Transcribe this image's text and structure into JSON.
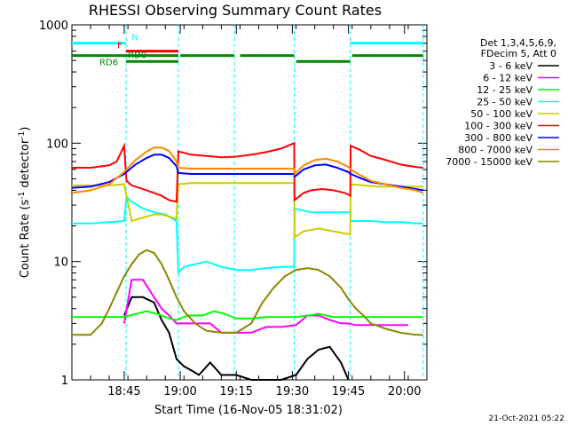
{
  "chart_data": {
    "type": "line",
    "title": "RHESSI Observing Summary Count Rates",
    "ylabel": "Count Rate (s",
    "ylabel_sup1": "-1",
    "ylabel_mid": " detector",
    "ylabel_sup2": "-1",
    "ylabel_end": ")",
    "xlabel": "Start Time (16-Nov-05 18:31:02)",
    "x_unit": "minutes after 18:31:02",
    "xlim": [
      0,
      95
    ],
    "ylim": [
      1,
      1000
    ],
    "yscale": "log",
    "x_tick_labels": [
      "18:45",
      "19:00",
      "19:15",
      "19:30",
      "19:45",
      "20:00"
    ],
    "x_tick_values": [
      14,
      29,
      44,
      59,
      74,
      89
    ],
    "y_tick_labels": [
      "1",
      "10",
      "100",
      "1000"
    ],
    "y_tick_values": [
      1,
      10,
      100,
      1000
    ],
    "legend_header": [
      "Det 1,3,4,5,6,9,",
      "FDecim 5, Att 0"
    ],
    "legend_position": "right",
    "night_boundaries": [
      14.5,
      28.5,
      43.5,
      59.5,
      74.5,
      94
    ],
    "series": [
      {
        "name": "3 - 6 keV",
        "color": "#000000",
        "values": [
          [
            14,
            3.5
          ],
          [
            16,
            5
          ],
          [
            19,
            5
          ],
          [
            22,
            4.5
          ],
          [
            24,
            3.2
          ],
          [
            26,
            2.5
          ],
          [
            28,
            1.5
          ],
          [
            30,
            1.3
          ],
          [
            32,
            1.2
          ],
          [
            34,
            1.1
          ],
          [
            37,
            1.4
          ],
          [
            40,
            1.1
          ],
          [
            44,
            1.1
          ],
          [
            48,
            1.0
          ],
          [
            52,
            1.0
          ],
          [
            56,
            1.0
          ],
          [
            60,
            1.1
          ],
          [
            63,
            1.5
          ],
          [
            66,
            1.8
          ],
          [
            69,
            1.9
          ],
          [
            72,
            1.4
          ],
          [
            74,
            1.0
          ]
        ]
      },
      {
        "name": "6 - 12 keV",
        "color": "#ff00ff",
        "values": [
          [
            14,
            3
          ],
          [
            16,
            7
          ],
          [
            19,
            7
          ],
          [
            22,
            5
          ],
          [
            24,
            4
          ],
          [
            26,
            3.5
          ],
          [
            28,
            3
          ],
          [
            30,
            3
          ],
          [
            33,
            3
          ],
          [
            35,
            3
          ],
          [
            37,
            3
          ],
          [
            40,
            2.5
          ],
          [
            44,
            2.5
          ],
          [
            48,
            2.5
          ],
          [
            52,
            2.8
          ],
          [
            56,
            2.8
          ],
          [
            60,
            2.9
          ],
          [
            63,
            3.5
          ],
          [
            66,
            3.5
          ],
          [
            69,
            3.2
          ],
          [
            72,
            3
          ],
          [
            74,
            3.0
          ],
          [
            76,
            2.9
          ],
          [
            80,
            2.9
          ],
          [
            86,
            2.9
          ],
          [
            90,
            2.9
          ]
        ]
      },
      {
        "name": "12 - 25 keV",
        "color": "#00ff00",
        "values": [
          [
            0,
            3.4
          ],
          [
            5,
            3.4
          ],
          [
            10,
            3.4
          ],
          [
            14,
            3.4
          ],
          [
            17,
            3.6
          ],
          [
            20,
            3.8
          ],
          [
            23,
            3.6
          ],
          [
            26,
            3.3
          ],
          [
            28,
            3.2
          ],
          [
            31,
            3.5
          ],
          [
            35,
            3.5
          ],
          [
            38,
            3.8
          ],
          [
            41,
            3.6
          ],
          [
            44,
            3.3
          ],
          [
            48,
            3.3
          ],
          [
            52,
            3.4
          ],
          [
            56,
            3.4
          ],
          [
            60,
            3.4
          ],
          [
            63,
            3.5
          ],
          [
            66,
            3.6
          ],
          [
            70,
            3.4
          ],
          [
            74,
            3.4
          ],
          [
            78,
            3.4
          ],
          [
            82,
            3.4
          ],
          [
            86,
            3.4
          ],
          [
            90,
            3.4
          ],
          [
            94,
            3.4
          ]
        ]
      },
      {
        "name": "25 - 50 keV",
        "color": "#00ffff",
        "values": [
          [
            0,
            21
          ],
          [
            5,
            21
          ],
          [
            10,
            21.5
          ],
          [
            14,
            22
          ],
          [
            14.6,
            35
          ],
          [
            16,
            32
          ],
          [
            19,
            28
          ],
          [
            22,
            26
          ],
          [
            25,
            25
          ],
          [
            28,
            22
          ],
          [
            28.5,
            8
          ],
          [
            30,
            9
          ],
          [
            33,
            9.5
          ],
          [
            36,
            10
          ],
          [
            40,
            9
          ],
          [
            44,
            8.5
          ],
          [
            48,
            8.5
          ],
          [
            52,
            8.8
          ],
          [
            56,
            9
          ],
          [
            59.5,
            9
          ],
          [
            59.6,
            28
          ],
          [
            62,
            27
          ],
          [
            64,
            26
          ],
          [
            67,
            26
          ],
          [
            70,
            26
          ],
          [
            73,
            26
          ],
          [
            74.5,
            26
          ],
          [
            74.6,
            22
          ],
          [
            77,
            22
          ],
          [
            80,
            22
          ],
          [
            84,
            21.5
          ],
          [
            88,
            21.5
          ],
          [
            92,
            21
          ],
          [
            94,
            21
          ]
        ]
      },
      {
        "name": "50 - 100 keV",
        "color": "#cccc00",
        "values": [
          [
            0,
            44
          ],
          [
            5,
            44
          ],
          [
            10,
            44
          ],
          [
            14,
            45
          ],
          [
            16,
            22
          ],
          [
            18,
            23
          ],
          [
            20,
            24
          ],
          [
            22,
            25
          ],
          [
            24,
            25
          ],
          [
            26,
            24
          ],
          [
            28,
            23
          ],
          [
            28.5,
            45
          ],
          [
            32,
            46
          ],
          [
            36,
            46
          ],
          [
            40,
            46
          ],
          [
            44,
            46
          ],
          [
            48,
            46
          ],
          [
            52,
            46
          ],
          [
            56,
            46
          ],
          [
            59.5,
            46
          ],
          [
            59.6,
            16
          ],
          [
            62,
            18
          ],
          [
            66,
            19
          ],
          [
            70,
            18
          ],
          [
            74,
            17
          ],
          [
            74.5,
            17
          ],
          [
            74.6,
            45
          ],
          [
            78,
            44
          ],
          [
            82,
            43
          ],
          [
            86,
            43
          ],
          [
            90,
            43
          ],
          [
            94,
            43
          ]
        ]
      },
      {
        "name": "100 - 300 keV",
        "color": "#ff0000",
        "values": [
          [
            0,
            62
          ],
          [
            5,
            62
          ],
          [
            10,
            65
          ],
          [
            12,
            70
          ],
          [
            14,
            95
          ],
          [
            14.6,
            48
          ],
          [
            16,
            44
          ],
          [
            18,
            42
          ],
          [
            20,
            40
          ],
          [
            22,
            38
          ],
          [
            24,
            36
          ],
          [
            26,
            33
          ],
          [
            28,
            32
          ],
          [
            28.5,
            85
          ],
          [
            32,
            80
          ],
          [
            36,
            78
          ],
          [
            40,
            76
          ],
          [
            44,
            77
          ],
          [
            48,
            80
          ],
          [
            52,
            84
          ],
          [
            56,
            90
          ],
          [
            59.5,
            100
          ],
          [
            59.6,
            33
          ],
          [
            62,
            38
          ],
          [
            64,
            40
          ],
          [
            67,
            41
          ],
          [
            70,
            40
          ],
          [
            73,
            38
          ],
          [
            74.5,
            36
          ],
          [
            74.6,
            95
          ],
          [
            77,
            88
          ],
          [
            80,
            78
          ],
          [
            84,
            72
          ],
          [
            88,
            66
          ],
          [
            92,
            63
          ],
          [
            94,
            62
          ]
        ]
      },
      {
        "name": "300 - 800 keV",
        "color": "#0000ff",
        "values": [
          [
            0,
            42
          ],
          [
            5,
            43
          ],
          [
            10,
            47
          ],
          [
            14,
            55
          ],
          [
            17,
            66
          ],
          [
            20,
            75
          ],
          [
            22,
            80
          ],
          [
            24,
            80
          ],
          [
            26,
            75
          ],
          [
            28,
            64
          ],
          [
            28.5,
            56
          ],
          [
            32,
            55
          ],
          [
            36,
            55
          ],
          [
            40,
            55
          ],
          [
            44,
            55
          ],
          [
            48,
            55
          ],
          [
            52,
            55
          ],
          [
            56,
            55
          ],
          [
            59.5,
            55
          ],
          [
            59.6,
            52
          ],
          [
            62,
            60
          ],
          [
            65,
            65
          ],
          [
            68,
            66
          ],
          [
            71,
            62
          ],
          [
            74,
            57
          ],
          [
            74.5,
            55
          ],
          [
            74.6,
            55
          ],
          [
            77,
            51
          ],
          [
            80,
            47
          ],
          [
            84,
            45
          ],
          [
            88,
            43
          ],
          [
            92,
            41
          ],
          [
            94,
            40
          ]
        ]
      },
      {
        "name": "800 - 7000 keV",
        "color": "#ff8800",
        "values": [
          [
            0,
            38
          ],
          [
            5,
            40
          ],
          [
            10,
            45
          ],
          [
            14,
            57
          ],
          [
            17,
            72
          ],
          [
            20,
            85
          ],
          [
            22,
            92
          ],
          [
            24,
            92
          ],
          [
            26,
            86
          ],
          [
            28,
            70
          ],
          [
            28.5,
            62
          ],
          [
            32,
            61
          ],
          [
            36,
            61
          ],
          [
            40,
            61
          ],
          [
            44,
            61
          ],
          [
            48,
            61
          ],
          [
            52,
            61
          ],
          [
            56,
            61
          ],
          [
            59.5,
            61
          ],
          [
            59.6,
            55
          ],
          [
            62,
            65
          ],
          [
            65,
            72
          ],
          [
            68,
            74
          ],
          [
            71,
            70
          ],
          [
            74,
            63
          ],
          [
            74.5,
            61
          ],
          [
            74.6,
            60
          ],
          [
            77,
            54
          ],
          [
            80,
            48
          ],
          [
            84,
            45
          ],
          [
            88,
            42
          ],
          [
            92,
            40
          ],
          [
            94,
            38
          ]
        ]
      },
      {
        "name": "7000 - 15000 keV",
        "color": "#888800",
        "values": [
          [
            0,
            2.4
          ],
          [
            3,
            2.4
          ],
          [
            5,
            2.4
          ],
          [
            8,
            3.0
          ],
          [
            10,
            4.0
          ],
          [
            12,
            5.5
          ],
          [
            14,
            7.5
          ],
          [
            16,
            9.5
          ],
          [
            18,
            11.5
          ],
          [
            20,
            12.5
          ],
          [
            22,
            11.8
          ],
          [
            24,
            9.5
          ],
          [
            26,
            7.0
          ],
          [
            28,
            5.0
          ],
          [
            30,
            3.8
          ],
          [
            33,
            3.0
          ],
          [
            36,
            2.6
          ],
          [
            40,
            2.5
          ],
          [
            44,
            2.5
          ],
          [
            48,
            3.0
          ],
          [
            51,
            4.5
          ],
          [
            54,
            6.0
          ],
          [
            57,
            7.5
          ],
          [
            60,
            8.5
          ],
          [
            63,
            8.8
          ],
          [
            66,
            8.5
          ],
          [
            69,
            7.5
          ],
          [
            72,
            6.0
          ],
          [
            74,
            4.8
          ],
          [
            76,
            4.0
          ],
          [
            78,
            3.5
          ],
          [
            80,
            3.0
          ],
          [
            84,
            2.7
          ],
          [
            88,
            2.5
          ],
          [
            92,
            2.4
          ],
          [
            94,
            2.4
          ]
        ]
      }
    ],
    "state_bars": [
      {
        "label": "N",
        "color": "#00ffff",
        "y": 700,
        "segments": [
          [
            0,
            14.5
          ],
          [
            74.5,
            94
          ]
        ]
      },
      {
        "label": "F",
        "color": "#ff0000",
        "y": 600,
        "segments": [
          [
            14.5,
            28.5
          ]
        ]
      },
      {
        "label": "RD0",
        "color": "#008800",
        "y": 550,
        "segments": [
          [
            0,
            28.5
          ],
          [
            29,
            43.5
          ],
          [
            45,
            59.5
          ],
          [
            75,
            94
          ]
        ]
      },
      {
        "label": "RD6",
        "color": "#008800",
        "y": 490,
        "segments": [
          [
            14.5,
            28.5
          ],
          [
            60,
            74.5
          ]
        ]
      }
    ]
  },
  "timestamp": "21-Oct-2021 05:22"
}
